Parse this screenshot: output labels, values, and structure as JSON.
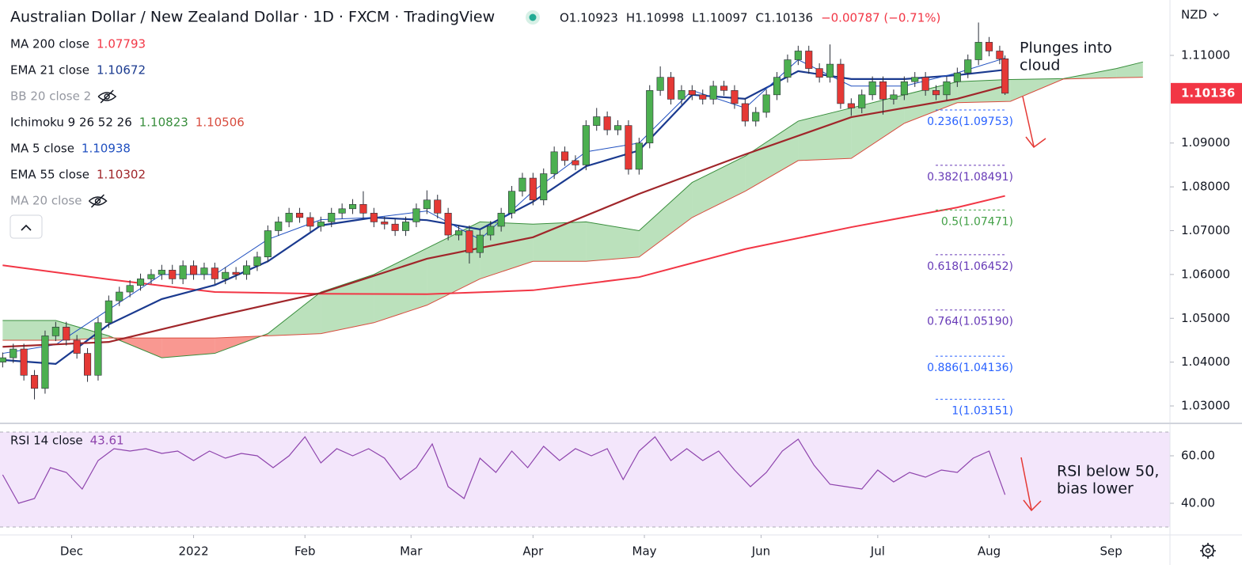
{
  "chart_data": [
    {
      "type": "candlestick",
      "title": "Australian Dollar / New Zealand Dollar · 1D · FXCM · TradingView",
      "quote": [
        "O1.10923",
        "H1.10998",
        "L1.10097",
        "C1.10136",
        "−0.00787 (−0.71%)"
      ],
      "currency": "NZD",
      "up_color": "#4caf50",
      "down_color": "#e53935",
      "wick_color": "#2a2e39",
      "x": [
        0,
        2,
        4,
        6,
        8,
        10,
        12,
        14,
        16,
        18,
        20,
        22,
        24,
        26,
        28,
        30,
        32,
        34,
        36,
        38,
        40,
        42,
        44,
        46,
        48,
        50,
        52,
        54,
        56,
        58,
        60,
        62,
        64,
        66,
        68,
        70,
        72,
        74,
        76,
        78,
        80,
        82,
        84,
        86,
        88,
        90,
        92,
        94,
        96,
        98,
        100,
        102,
        104,
        106,
        108,
        110,
        112,
        114,
        116,
        118,
        120,
        122,
        124,
        126,
        128,
        130,
        132,
        134,
        136,
        138,
        140,
        142,
        144,
        146,
        148,
        150,
        152,
        154,
        156,
        158,
        160,
        162,
        164,
        166,
        168,
        170,
        172,
        174,
        176,
        178,
        180,
        182,
        184,
        186,
        188,
        189
      ],
      "open": [
        1.04,
        1.041,
        1.043,
        1.037,
        1.034,
        1.046,
        1.048,
        1.045,
        1.042,
        1.037,
        1.049,
        1.054,
        1.056,
        1.0575,
        1.059,
        1.06,
        1.061,
        1.059,
        1.062,
        1.06,
        1.0615,
        1.059,
        1.0605,
        1.06,
        1.062,
        1.064,
        1.07,
        1.072,
        1.074,
        1.073,
        1.071,
        1.072,
        1.074,
        1.075,
        1.076,
        1.074,
        1.072,
        1.0715,
        1.07,
        1.072,
        1.075,
        1.077,
        1.074,
        1.069,
        1.07,
        1.065,
        1.069,
        1.071,
        1.074,
        1.079,
        1.082,
        1.077,
        1.083,
        1.088,
        1.086,
        1.085,
        1.094,
        1.096,
        1.093,
        1.094,
        1.084,
        1.09,
        1.102,
        1.105,
        1.1,
        1.102,
        1.101,
        1.1,
        1.103,
        1.102,
        1.099,
        1.095,
        1.097,
        1.101,
        1.105,
        1.109,
        1.111,
        1.107,
        1.105,
        1.108,
        1.099,
        1.098,
        1.101,
        1.104,
        1.1,
        1.101,
        1.104,
        1.105,
        1.102,
        1.101,
        1.104,
        1.106,
        1.109,
        1.113,
        1.111,
        1.10923
      ],
      "high": [
        1.0422,
        1.0442,
        1.0442,
        1.0382,
        1.0472,
        1.0492,
        1.0492,
        1.0462,
        1.0432,
        1.0502,
        1.0552,
        1.0572,
        1.0587,
        1.0602,
        1.0612,
        1.0622,
        1.0622,
        1.0632,
        1.0632,
        1.0627,
        1.0627,
        1.0617,
        1.0617,
        1.0632,
        1.0652,
        1.0712,
        1.0732,
        1.0752,
        1.0752,
        1.0742,
        1.0732,
        1.0752,
        1.0762,
        1.0772,
        1.079,
        1.0752,
        1.0732,
        1.0727,
        1.0732,
        1.0762,
        1.0792,
        1.0782,
        1.0752,
        1.0712,
        1.0712,
        1.0702,
        1.0722,
        1.0752,
        1.0802,
        1.0832,
        1.0832,
        1.0842,
        1.0892,
        1.0892,
        1.0872,
        1.0952,
        1.098,
        1.0972,
        1.0952,
        1.0952,
        1.0912,
        1.1032,
        1.1075,
        1.1062,
        1.1032,
        1.1032,
        1.1022,
        1.1042,
        1.1042,
        1.1032,
        1.1002,
        1.0982,
        1.1022,
        1.1062,
        1.1102,
        1.1122,
        1.1122,
        1.1082,
        1.1125,
        1.1092,
        1.1002,
        1.1022,
        1.1052,
        1.1052,
        1.1022,
        1.1052,
        1.1062,
        1.1062,
        1.1032,
        1.1052,
        1.1072,
        1.1102,
        1.1175,
        1.1142,
        1.1122,
        1.10998
      ],
      "low": [
        1.0388,
        1.0398,
        1.0358,
        1.0315,
        1.0328,
        1.0448,
        1.0438,
        1.0408,
        1.0355,
        1.0358,
        1.0478,
        1.0528,
        1.0548,
        1.0563,
        1.0578,
        1.0588,
        1.0578,
        1.0578,
        1.0588,
        1.0588,
        1.0578,
        1.0578,
        1.0588,
        1.0588,
        1.0608,
        1.0628,
        1.0688,
        1.0708,
        1.0718,
        1.0698,
        1.0698,
        1.0708,
        1.0728,
        1.0738,
        1.0728,
        1.0708,
        1.0703,
        1.0688,
        1.0688,
        1.0708,
        1.0738,
        1.0728,
        1.0678,
        1.0678,
        1.0625,
        1.0638,
        1.0678,
        1.0698,
        1.0728,
        1.0778,
        1.0758,
        1.0758,
        1.0818,
        1.0848,
        1.0838,
        1.0838,
        1.0928,
        1.0918,
        1.0918,
        1.0828,
        1.0828,
        1.0888,
        1.1008,
        1.0988,
        1.0988,
        1.0998,
        1.0988,
        1.0988,
        1.1008,
        1.0978,
        1.0938,
        1.0938,
        1.0958,
        1.0998,
        1.1038,
        1.1078,
        1.1058,
        1.1038,
        1.1038,
        1.0978,
        1.0962,
        1.0968,
        1.0998,
        1.0965,
        1.0988,
        1.0998,
        1.1028,
        1.1008,
        1.0998,
        1.0998,
        1.1028,
        1.1048,
        1.1078,
        1.1098,
        1.108,
        1.10097
      ],
      "close": [
        1.041,
        1.043,
        1.037,
        1.034,
        1.046,
        1.048,
        1.045,
        1.042,
        1.037,
        1.049,
        1.054,
        1.056,
        1.0575,
        1.059,
        1.06,
        1.061,
        1.059,
        1.062,
        1.06,
        1.0615,
        1.059,
        1.0605,
        1.06,
        1.062,
        1.064,
        1.07,
        1.072,
        1.074,
        1.073,
        1.071,
        1.072,
        1.074,
        1.075,
        1.076,
        1.074,
        1.072,
        1.0715,
        1.07,
        1.072,
        1.075,
        1.077,
        1.074,
        1.069,
        1.07,
        1.065,
        1.069,
        1.071,
        1.074,
        1.079,
        1.082,
        1.077,
        1.083,
        1.088,
        1.086,
        1.085,
        1.094,
        1.096,
        1.093,
        1.094,
        1.084,
        1.09,
        1.102,
        1.105,
        1.1,
        1.102,
        1.101,
        1.1,
        1.103,
        1.102,
        1.099,
        1.095,
        1.097,
        1.101,
        1.105,
        1.109,
        1.111,
        1.107,
        1.105,
        1.108,
        1.099,
        1.098,
        1.101,
        1.104,
        1.1,
        1.101,
        1.104,
        1.105,
        1.102,
        1.101,
        1.104,
        1.106,
        1.109,
        1.113,
        1.111,
        1.1092,
        1.10136
      ],
      "last_price": 1.10136,
      "last_price_color": "#f23645",
      "legend": [
        {
          "name": "MA 200 close",
          "value": 1.07793,
          "color": "#f23645",
          "width": 2,
          "x": [
            0,
            20,
            40,
            60,
            80,
            100,
            120,
            140,
            160,
            180,
            189
          ],
          "values": [
            1.0621,
            1.0589,
            1.056,
            1.0556,
            1.0555,
            1.0564,
            1.0594,
            1.0658,
            1.0708,
            1.0753,
            1.07793
          ]
        },
        {
          "name": "EMA 21 close",
          "value": 1.10672,
          "color": "#1a3a8f",
          "width": 2.2,
          "x": [
            0,
            10,
            20,
            30,
            40,
            50,
            60,
            70,
            80,
            90,
            100,
            110,
            120,
            130,
            140,
            150,
            160,
            170,
            180,
            189
          ],
          "values": [
            1.0405,
            1.0396,
            1.0486,
            1.0544,
            1.0576,
            1.063,
            1.0712,
            1.073,
            1.0724,
            1.0703,
            1.0766,
            1.0847,
            1.0883,
            1.101,
            1.1001,
            1.1064,
            1.1046,
            1.1046,
            1.1055,
            1.10672
          ]
        },
        {
          "name": "BB 20 close 2",
          "hidden": true
        },
        {
          "name": "Ichimoku 9 26 52 26",
          "ichimoku": true
        },
        {
          "name": "MA 5 close",
          "value": 1.10938,
          "color": "#2050c0",
          "width": 1,
          "x": [
            0,
            10,
            20,
            30,
            40,
            50,
            60,
            70,
            80,
            90,
            100,
            110,
            120,
            130,
            140,
            150,
            160,
            170,
            180,
            189
          ],
          "values": [
            1.042,
            1.044,
            1.052,
            1.06,
            1.06,
            1.068,
            1.0725,
            1.073,
            1.0745,
            1.068,
            1.079,
            1.088,
            1.09,
            1.102,
            1.098,
            1.109,
            1.103,
            1.103,
            1.106,
            1.10938
          ]
        },
        {
          "name": "EMA 55 close",
          "value": 1.10302,
          "color": "#a0262a",
          "width": 2.2,
          "x": [
            0,
            20,
            40,
            60,
            80,
            100,
            120,
            140,
            160,
            180,
            189
          ],
          "values": [
            1.0435,
            1.0446,
            1.0504,
            1.0558,
            1.0636,
            1.0685,
            1.0784,
            1.0874,
            1.0959,
            1.1001,
            1.10302
          ]
        },
        {
          "name": "MA 20 close",
          "hidden": true
        }
      ],
      "ichimoku": {
        "span_a_last": 1.10823,
        "span_b_last": 1.10506,
        "span_a_color": "#388e3c",
        "span_b_color": "#d84c3e",
        "fill_up": "rgba(76,175,80,0.38)",
        "fill_down": "rgba(244,67,54,0.55)",
        "x": [
          0,
          10,
          20,
          30,
          40,
          50,
          60,
          70,
          80,
          90,
          100,
          110,
          120,
          130,
          140,
          150,
          160,
          170,
          180,
          190,
          200,
          210,
          215
        ],
        "span_a": [
          1.0495,
          1.0495,
          1.046,
          1.041,
          1.042,
          1.0465,
          1.056,
          1.06,
          1.066,
          1.072,
          1.0715,
          1.072,
          1.07,
          1.081,
          1.087,
          1.095,
          1.098,
          1.101,
          1.104,
          1.1045,
          1.1047,
          1.107,
          1.1085
        ],
        "span_b": [
          1.045,
          1.045,
          1.0455,
          1.0455,
          1.0455,
          1.046,
          1.0465,
          1.049,
          1.053,
          1.059,
          1.063,
          1.063,
          1.064,
          1.073,
          1.079,
          1.086,
          1.0865,
          1.0945,
          1.0992,
          1.0995,
          1.1046,
          1.1049,
          1.105
        ]
      },
      "fib_levels": [
        {
          "label": "0.236(1.09753)",
          "value": 1.09753,
          "color": "#2962ff"
        },
        {
          "label": "0.382(1.08491)",
          "value": 1.08491,
          "color": "#673ab7"
        },
        {
          "label": "0.5(1.07471)",
          "value": 1.07471,
          "color": "#43a047"
        },
        {
          "label": "0.618(1.06452)",
          "value": 1.06452,
          "color": "#673ab7"
        },
        {
          "label": "0.764(1.05190)",
          "value": 1.0519,
          "color": "#673ab7"
        },
        {
          "label": "0.886(1.04136)",
          "value": 1.04136,
          "color": "#2962ff"
        },
        {
          "label": "1(1.03151)",
          "value": 1.03151,
          "color": "#2962ff"
        }
      ],
      "annotation": [
        "Plunges into",
        "cloud"
      ],
      "xlim": [
        -0.5,
        220.1
      ],
      "xticks": [
        {
          "value": 13,
          "label": "Dec"
        },
        {
          "value": 36,
          "label": "2022"
        },
        {
          "value": 57,
          "label": "Feb"
        },
        {
          "value": 77,
          "label": "Mar"
        },
        {
          "value": 100,
          "label": "Apr"
        },
        {
          "value": 121,
          "label": "May"
        },
        {
          "value": 143,
          "label": "Jun"
        },
        {
          "value": 165,
          "label": "Jul"
        },
        {
          "value": 186,
          "label": "Aug"
        },
        {
          "value": 209,
          "label": "Sep"
        }
      ],
      "ylim": [
        1.02639,
        1.12264
      ],
      "yticks": [
        {
          "value": 1.03,
          "label": "1.03000"
        },
        {
          "value": 1.04,
          "label": "1.04000"
        },
        {
          "value": 1.05,
          "label": "1.05000"
        },
        {
          "value": 1.06,
          "label": "1.06000"
        },
        {
          "value": 1.07,
          "label": "1.07000"
        },
        {
          "value": 1.08,
          "label": "1.08000"
        },
        {
          "value": 1.09,
          "label": "1.09000"
        },
        {
          "value": 1.11,
          "label": "1.11000"
        }
      ],
      "grid": false
    },
    {
      "type": "line",
      "name": "RSI 14 close",
      "value": 43.61,
      "color": "#8e44ad",
      "band": [
        30,
        70
      ],
      "band_color": "#f3e6fb",
      "x": [
        0,
        3,
        6,
        9,
        12,
        15,
        18,
        21,
        24,
        27,
        30,
        33,
        36,
        39,
        42,
        45,
        48,
        51,
        54,
        57,
        60,
        63,
        66,
        69,
        72,
        75,
        78,
        81,
        84,
        87,
        90,
        93,
        96,
        99,
        102,
        105,
        108,
        111,
        114,
        117,
        120,
        123,
        126,
        129,
        132,
        135,
        138,
        141,
        144,
        147,
        150,
        153,
        156,
        159,
        162,
        165,
        168,
        171,
        174,
        177,
        180,
        183,
        186,
        189
      ],
      "values": [
        52,
        40,
        42,
        55,
        53,
        46,
        58,
        63,
        62,
        63,
        61,
        62,
        58,
        62,
        59,
        61,
        60,
        55,
        60,
        68,
        57,
        63,
        60,
        63,
        59,
        50,
        55,
        65,
        47,
        42,
        59,
        53,
        62,
        55,
        64,
        58,
        63,
        60,
        63,
        50,
        62,
        68,
        58,
        63,
        58,
        62,
        54,
        47,
        53,
        62,
        67,
        56,
        48,
        47,
        46,
        54,
        49,
        53,
        51,
        54,
        53,
        59,
        62,
        43.61
      ],
      "annotation": [
        "RSI below 50,",
        "bias lower"
      ],
      "ylim": [
        27,
        73
      ],
      "yticks": [
        {
          "value": 60,
          "label": "60.00"
        },
        {
          "value": 40,
          "label": "40.00"
        }
      ]
    }
  ]
}
